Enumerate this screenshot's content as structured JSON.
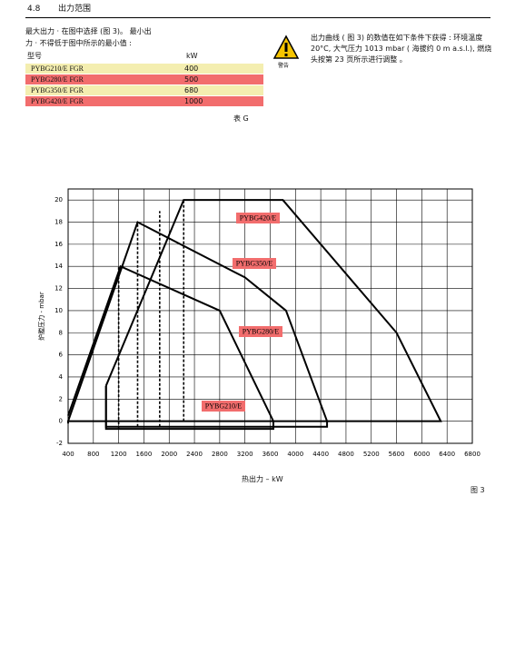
{
  "header": {
    "number": "4.8",
    "title": "出力范围"
  },
  "intro": [
    "最大出力 · 在图中选择 (图 3)。 最小出",
    "力 · 不得低于图中所示的最小值 :"
  ],
  "table": {
    "head": [
      "型号",
      "kW"
    ],
    "rows": [
      [
        "PYBG210/E   FGR",
        "400"
      ],
      [
        "PYBG280/E   FGR",
        "500"
      ],
      [
        "PYBG350/E   FGR",
        "680"
      ],
      [
        "PYBG420/E   FGR",
        "1000"
      ]
    ],
    "caption": "表 G"
  },
  "warning": {
    "icon_label": "警告",
    "text": "出力曲线 ( 图 3) 的数值在如下条件下获得 : 环境温度 20°C, 大气压力 1013 mbar ( 海拔约 0 m a.s.l.), 燃烧头按第 23 页所示进行调整 。"
  },
  "figure_caption": "图 3",
  "chart_data": {
    "type": "line",
    "x_label": "热出力 – kW",
    "y_label": "炉膛压力 - mbar",
    "xlim": [
      400,
      6800
    ],
    "ylim": [
      -2,
      21
    ],
    "xticks": [
      400,
      800,
      1200,
      1600,
      2000,
      2400,
      2800,
      3200,
      3600,
      4000,
      4400,
      4800,
      5200,
      5600,
      6000,
      6400,
      6800
    ],
    "yticks": [
      -2,
      0,
      2,
      4,
      6,
      8,
      10,
      12,
      14,
      16,
      18,
      20
    ],
    "grid": true,
    "series": [
      {
        "name": "PYBG210/E",
        "color": "#000000",
        "x": [
          1000,
          1000,
          3650,
          3650
        ],
        "values": [
          3.2,
          -0.7,
          -0.7,
          0
        ]
      },
      {
        "name": "PYBG280/E",
        "color": "#000000",
        "x": [
          400,
          1230,
          2800,
          3650
        ],
        "values": [
          0.5,
          14,
          10,
          0
        ]
      },
      {
        "name": "PYBG350/E",
        "color": "#000000",
        "x": [
          1000,
          1000,
          4500,
          4500,
          3850,
          3200,
          1500,
          400
        ],
        "values": [
          3.2,
          -0.5,
          -0.5,
          0,
          10,
          13,
          18,
          0
        ]
      },
      {
        "name": "PYBG420/E",
        "color": "#000000",
        "x": [
          1000,
          2230,
          3800,
          5600,
          6300,
          400,
          400
        ],
        "values": [
          3.2,
          20,
          20,
          8,
          0,
          0,
          -0.2
        ]
      }
    ],
    "min_lines": [
      {
        "x": 1200,
        "y": [
          -0.7,
          14
        ]
      },
      {
        "x": 1500,
        "y": [
          -0.5,
          18
        ]
      },
      {
        "x": 1850,
        "y": [
          -0.5,
          19
        ]
      },
      {
        "x": 2230,
        "y": [
          0,
          20
        ]
      }
    ]
  }
}
